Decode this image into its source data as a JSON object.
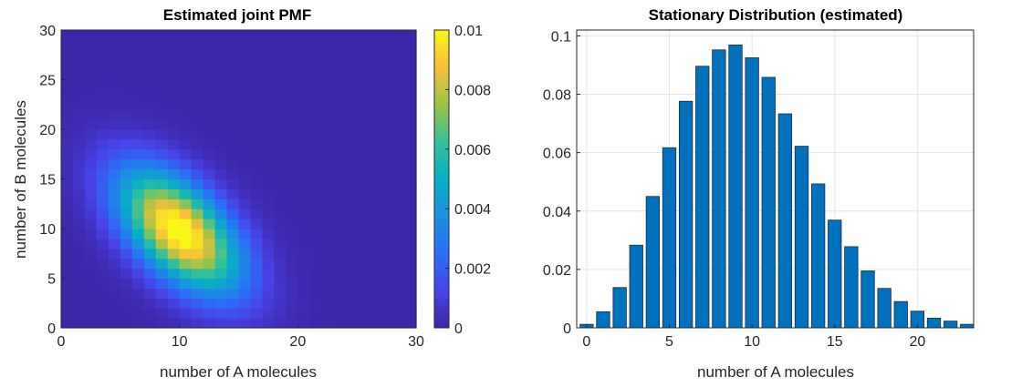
{
  "chart_data": [
    {
      "type": "heatmap",
      "title": "Estimated joint PMF",
      "xlabel": "number of A molecules",
      "ylabel": "number of B molecules",
      "xlim": [
        0,
        30
      ],
      "ylim": [
        0,
        30
      ],
      "xticks": [
        "0",
        "10",
        "20",
        "30"
      ],
      "yticks": [
        "0",
        "5",
        "10",
        "15",
        "20",
        "25",
        "30"
      ],
      "colorbar": {
        "range": [
          0,
          0.01
        ],
        "ticks": [
          "0",
          "0.002",
          "0.004",
          "0.006",
          "0.008",
          "0.01"
        ],
        "colormap": "parula"
      },
      "peak": {
        "a": 10,
        "b": 10,
        "value": 0.0104
      },
      "ridge": "anti-diagonal spread from (0,28) to (28,0)"
    },
    {
      "type": "bar",
      "title": "Stationary Distribution (estimated)",
      "xlabel": "number of A molecules",
      "ylabel": "",
      "x": [
        0,
        1,
        2,
        3,
        4,
        5,
        6,
        7,
        8,
        9,
        10,
        11,
        12,
        13,
        14,
        15,
        16,
        17,
        18,
        19,
        20,
        21,
        22,
        23
      ],
      "values": [
        0.0012,
        0.0055,
        0.0138,
        0.0283,
        0.045,
        0.0617,
        0.0776,
        0.0896,
        0.0952,
        0.0969,
        0.0925,
        0.0858,
        0.0733,
        0.0622,
        0.0493,
        0.0369,
        0.0278,
        0.0195,
        0.0135,
        0.009,
        0.0057,
        0.0033,
        0.0023,
        0.0012
      ],
      "xlim": [
        -0.6,
        23.4
      ],
      "ylim": [
        0,
        0.102
      ],
      "xticks": [
        "0",
        "5",
        "10",
        "15",
        "20"
      ],
      "yticks": [
        "0",
        "0.02",
        "0.04",
        "0.06",
        "0.08",
        "0.1"
      ],
      "grid": true,
      "bar_color": "#0072BD"
    }
  ]
}
